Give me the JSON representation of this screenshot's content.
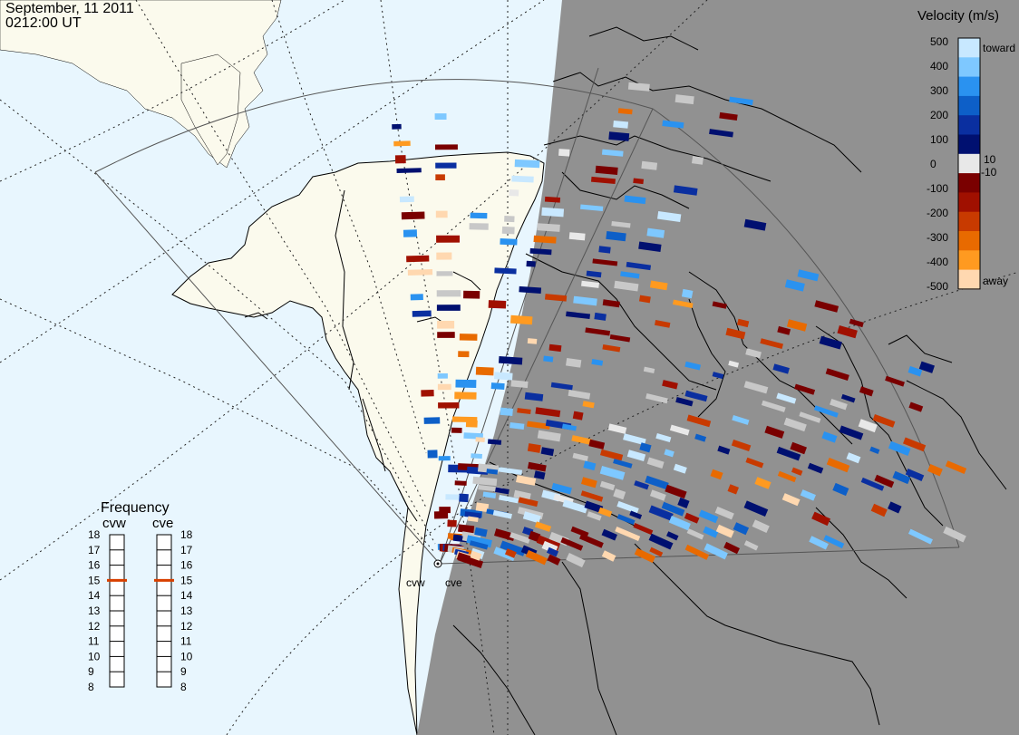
{
  "title": {
    "date": "September, 11 2011",
    "time": "0212:00 UT"
  },
  "colors": {
    "ocean_day": "#e8f6fe",
    "ocean_night": "#919191",
    "land_day": "#fbfaed",
    "land_night": "#919191",
    "coast": "#000000",
    "ground_scatter": "#c8c8c8"
  },
  "velocity_scale": {
    "title": "Velocity (m/s)",
    "toward_label": "toward",
    "away_label": "away",
    "ticks": [
      "500",
      "400",
      "300",
      "200",
      "100",
      "10",
      "0",
      "-10",
      "-100",
      "-200",
      "-300",
      "-400",
      "-500"
    ],
    "colors": [
      "#c8e8ff",
      "#7ec8ff",
      "#2a92f0",
      "#0d5fc8",
      "#0a2fa0",
      "#001070",
      "#e8e8e8",
      "#7a0000",
      "#a01000",
      "#c83a00",
      "#e86a00",
      "#ff9a20",
      "#ffd8b0"
    ]
  },
  "frequency": {
    "title": "Frequency",
    "radars": [
      {
        "name": "cvw",
        "value": 15
      },
      {
        "name": "cve",
        "value": 15
      }
    ],
    "ticks": [
      "18",
      "17",
      "16",
      "15",
      "14",
      "13",
      "12",
      "11",
      "10",
      "9",
      "8"
    ],
    "marker_color": "#d84000"
  },
  "radars": [
    {
      "name": "cvw"
    },
    {
      "name": "cve"
    }
  ]
}
